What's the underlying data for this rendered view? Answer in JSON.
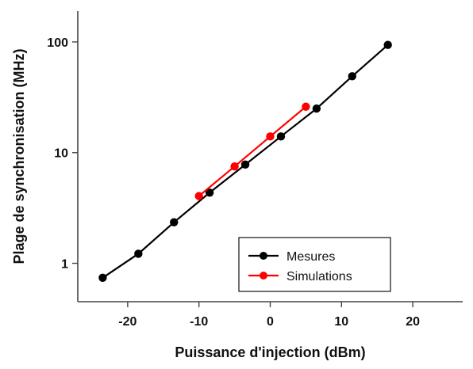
{
  "chart_data": {
    "type": "line",
    "xlabel": "Puissance d'injection (dBm)",
    "ylabel": "Plage de synchronisation (MHz)",
    "xlim": [
      -27,
      27
    ],
    "ylim": [
      0.45,
      190
    ],
    "yscale": "log",
    "grid": false,
    "legend_position": "bottom-right",
    "x_ticks": [
      -20,
      -10,
      0,
      10,
      20
    ],
    "x_tick_labels": [
      "-20",
      "-10",
      "0",
      "10",
      "20"
    ],
    "y_ticks": [
      1,
      10,
      100
    ],
    "y_tick_labels": [
      "1",
      "10",
      "100"
    ],
    "series": [
      {
        "name": "Mesures",
        "color": "#000000",
        "x": [
          -23.5,
          -18.5,
          -13.5,
          -8.5,
          -3.5,
          1.5,
          6.5,
          11.5,
          16.5
        ],
        "y": [
          0.74,
          1.22,
          2.35,
          4.35,
          7.8,
          14.0,
          25.0,
          49.0,
          94.0
        ]
      },
      {
        "name": "Simulations",
        "color": "#ff0000",
        "x": [
          -10,
          -5,
          0,
          5
        ],
        "y": [
          4.05,
          7.5,
          14.0,
          26.0
        ]
      }
    ]
  }
}
